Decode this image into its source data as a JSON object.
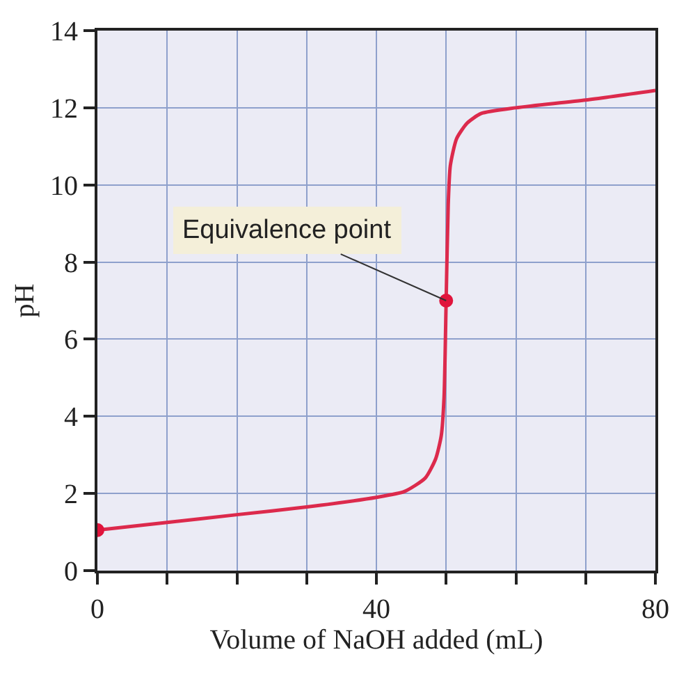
{
  "chart_data": {
    "type": "line",
    "xlabel": "Volume of NaOH added (mL)",
    "ylabel": "pH",
    "series": [
      {
        "color": "#dc2a4c",
        "x": [
          0,
          10,
          20,
          30,
          40,
          44,
          47,
          48.5,
          49.3,
          49.7,
          50,
          50.3,
          50.6,
          51.5,
          53,
          55,
          60,
          70,
          80
        ],
        "values": [
          1.05,
          1.25,
          1.45,
          1.65,
          1.9,
          2.05,
          2.4,
          2.9,
          3.5,
          4.5,
          7,
          9.5,
          10.5,
          11.2,
          11.6,
          11.85,
          12,
          12.2,
          12.45
        ]
      },
      {
        "type": "scatter",
        "color": "#e0143c",
        "marker": "circle",
        "x": [
          0,
          50
        ],
        "values": [
          1.05,
          7
        ]
      }
    ],
    "annotations": [
      {
        "text": "Equivalence point",
        "x": 50,
        "y": 7
      }
    ],
    "xlim": [
      0,
      80
    ],
    "ylim": [
      0,
      14
    ],
    "xticks": [
      0,
      {
        "value": 10,
        "label": null
      },
      {
        "value": 20,
        "label": null
      },
      {
        "value": 30,
        "label": null
      },
      40,
      {
        "value": 50,
        "label": null
      },
      {
        "value": 60,
        "label": null
      },
      {
        "value": 70,
        "label": null
      },
      80
    ],
    "yticks": [
      0,
      2,
      4,
      6,
      8,
      10,
      12,
      14
    ],
    "grid": true,
    "line_style": "solid"
  }
}
